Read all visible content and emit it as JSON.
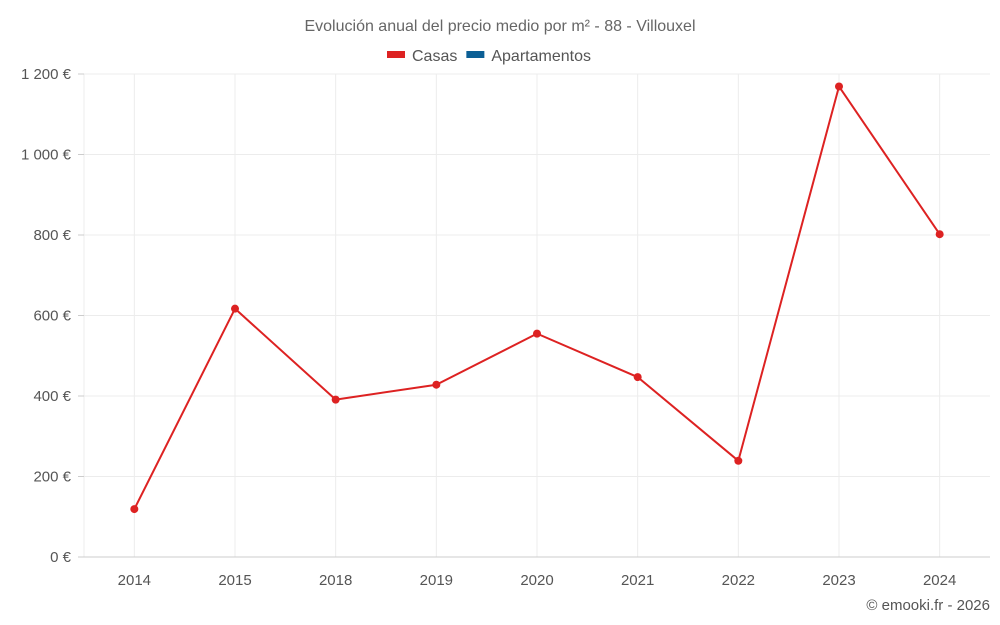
{
  "title": "Evolución anual del precio medio por m² - 88 - Villouxel",
  "legend": [
    {
      "label": "Casas",
      "color": "#dd2222"
    },
    {
      "label": "Apartamentos",
      "color": "#0b5f95"
    }
  ],
  "credit": "© emooki.fr - 2026",
  "colors": {
    "grid": "#ececec",
    "axis": "#cccccc",
    "series_casas": "#dd2222"
  },
  "chart_data": {
    "type": "line",
    "title": "Evolución anual del precio medio por m² - 88 - Villouxel",
    "xlabel": "",
    "ylabel": "",
    "categories": [
      "2014",
      "2015",
      "2018",
      "2019",
      "2020",
      "2021",
      "2022",
      "2023",
      "2024"
    ],
    "series": [
      {
        "name": "Casas",
        "color": "#dd2222",
        "values": [
          119,
          617,
          391,
          428,
          555,
          447,
          239,
          1169,
          802
        ]
      },
      {
        "name": "Apartamentos",
        "color": "#0b5f95",
        "values": []
      }
    ],
    "ylim": [
      0,
      1200
    ],
    "yticks": [
      0,
      200,
      400,
      600,
      800,
      1000,
      1200
    ],
    "ytick_labels": [
      "0 €",
      "200 €",
      "400 €",
      "600 €",
      "800 €",
      "1 000 €",
      "1 200 €"
    ],
    "grid": true,
    "legend_position": "top"
  }
}
